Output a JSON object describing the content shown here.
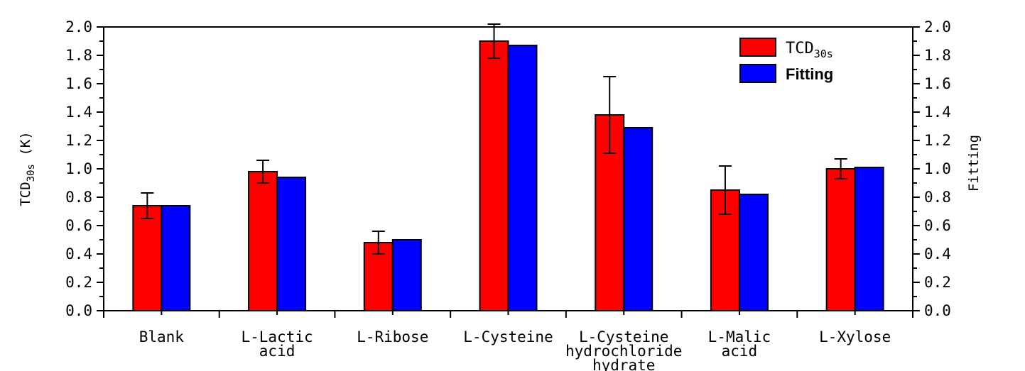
{
  "chart_data": {
    "type": "bar",
    "categories": [
      [
        "Blank"
      ],
      [
        "L-Lactic",
        "acid"
      ],
      [
        "L-Ribose"
      ],
      [
        "L-Cysteine"
      ],
      [
        "L-Cysteine",
        "hydrochloride",
        "hydrate"
      ],
      [
        "L-Malic",
        "acid"
      ],
      [
        "L-Xylose"
      ]
    ],
    "series": [
      {
        "name": "TCD30s",
        "name_main": "TCD",
        "name_sub": "30s",
        "color": "#ff0000",
        "values": [
          0.74,
          0.98,
          0.48,
          1.9,
          1.38,
          0.85,
          1.0
        ],
        "errors": [
          0.09,
          0.08,
          0.08,
          0.12,
          0.27,
          0.17,
          0.07
        ]
      },
      {
        "name": "Fitting",
        "color": "#0000ff",
        "values": [
          0.74,
          0.94,
          0.5,
          1.87,
          1.29,
          0.82,
          1.01
        ]
      }
    ],
    "ylabel_left": {
      "main": "TCD",
      "sub": "30s",
      "unit": " (K)"
    },
    "ylabel_right": "Fitting",
    "ylim": [
      0,
      2.0
    ],
    "yticks": [
      "0.0",
      "0.2",
      "0.4",
      "0.6",
      "0.8",
      "1.0",
      "1.2",
      "1.4",
      "1.6",
      "1.8",
      "2.0"
    ],
    "legend_position": "top-right",
    "grid": false
  }
}
